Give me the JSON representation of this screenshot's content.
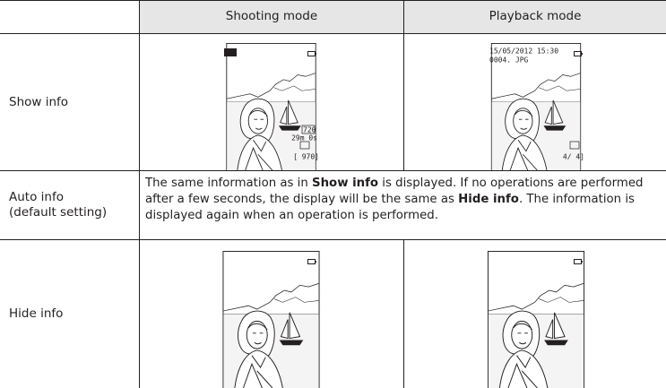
{
  "header": {
    "shooting": "Shooting mode",
    "playback": "Playback mode"
  },
  "rows": [
    {
      "label": "Show info",
      "shooting_screen": [
        "720",
        "29m 0s",
        "[ 970]"
      ],
      "playback_screen": [
        "15/05/2012 15:30",
        "0004. JPG",
        "4/ 4]"
      ]
    },
    {
      "label": "Auto info\n(default setting)",
      "text": [
        "The same information as in ",
        "Show info",
        " is displayed. If no operations are performed after a few seconds, the display will be the same as ",
        "Hide info",
        ". The information is displayed again when an operation is performed."
      ]
    },
    {
      "label": "Hide info"
    }
  ]
}
